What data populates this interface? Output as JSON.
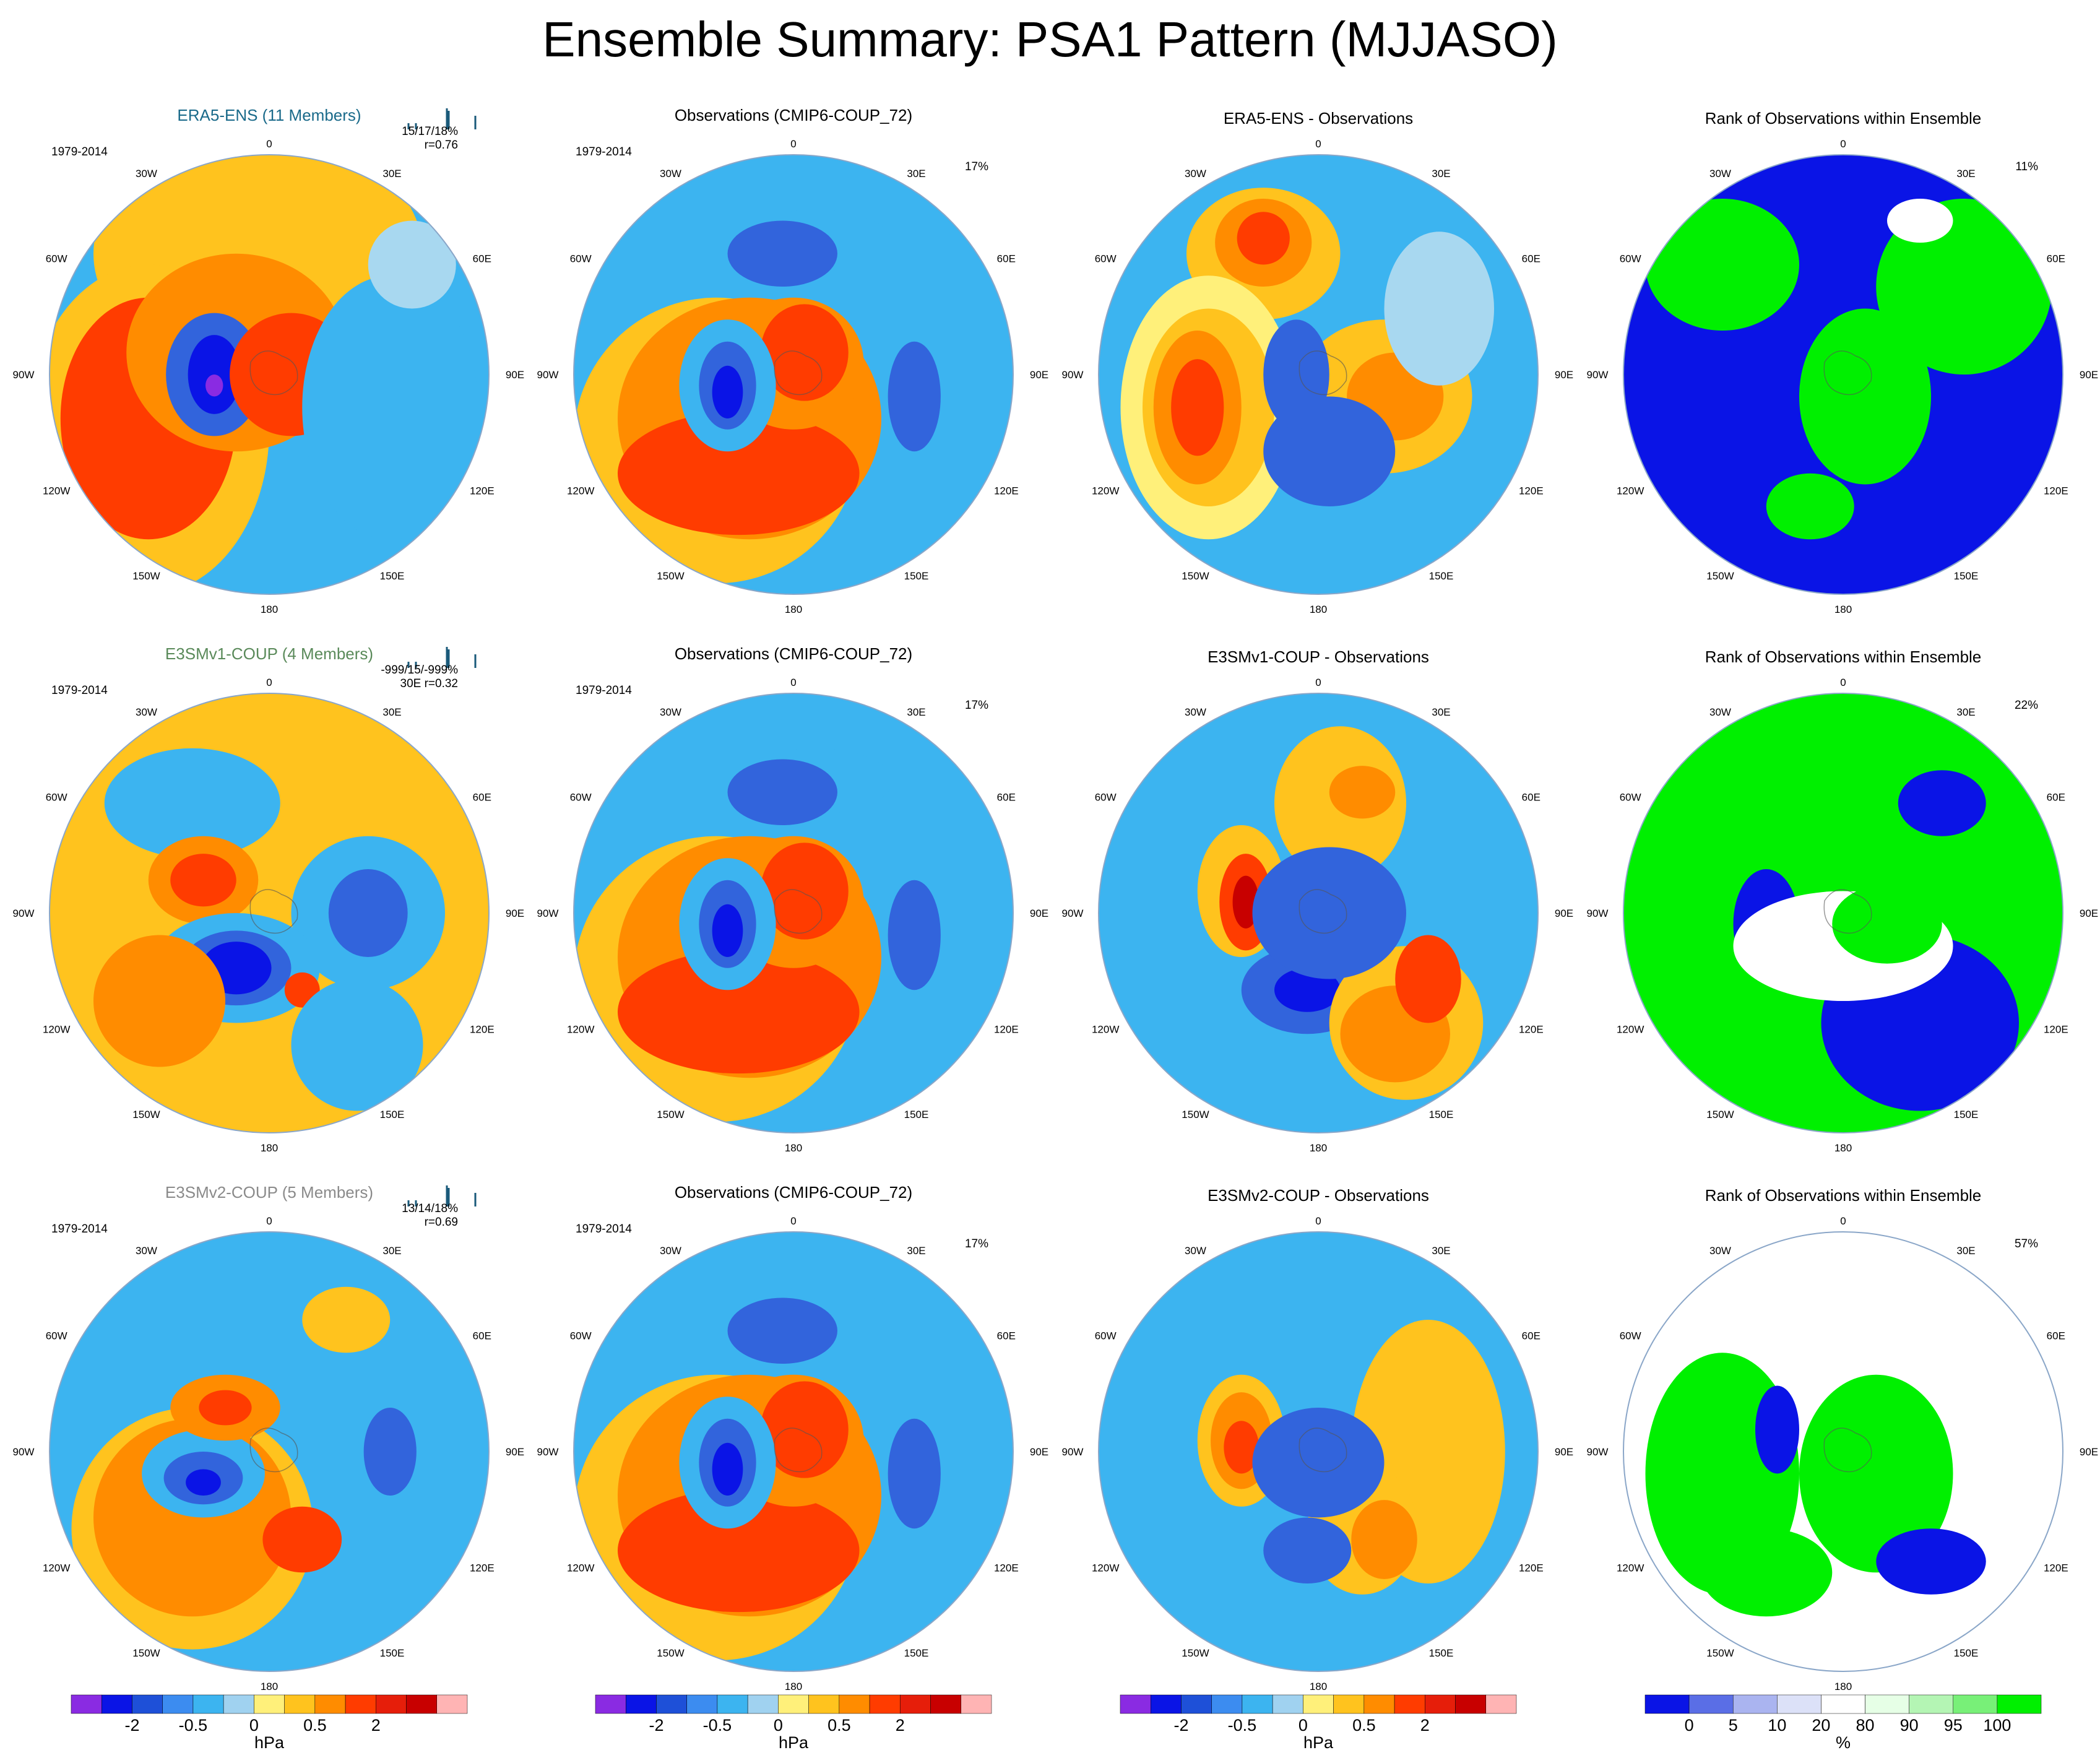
{
  "figure": {
    "title": "Ensemble Summary: PSA1 Pattern (MJJASO)"
  },
  "map_labels": {
    "top": "0",
    "bottom": "180",
    "left_labels": [
      "30W",
      "60W",
      "90W",
      "120W",
      "150W"
    ],
    "right_labels": [
      "30E",
      "60E",
      "90E",
      "120E",
      "150E"
    ]
  },
  "rows": [
    {
      "ensemble": {
        "title": "ERA5-ENS (11 Members)",
        "title_color": "#1a6a8a",
        "period": "1979-2014",
        "stats": "15/17/18%",
        "corr": "r=0.76",
        "percent": "",
        "row_prefix": ""
      },
      "obs": {
        "title": "Observations (CMIP6-COUP_72)",
        "period": "1979-2014",
        "percent": "17%"
      },
      "diff": {
        "title": "ERA5-ENS - Observations"
      },
      "rank": {
        "title": "Rank of Observations within Ensemble",
        "percent": "11%"
      }
    },
    {
      "ensemble": {
        "title": "E3SMv1-COUP (4 Members)",
        "title_color": "#5a8a5a",
        "period": "1979-2014",
        "stats": "-999/15/-999%",
        "corr": "30E  r=0.32",
        "percent": "",
        "row_prefix": ""
      },
      "obs": {
        "title": "Observations (CMIP6-COUP_72)",
        "period": "1979-2014",
        "percent": "17%"
      },
      "diff": {
        "title": "E3SMv1-COUP - Observations"
      },
      "rank": {
        "title": "Rank of Observations within Ensemble",
        "percent": "22%"
      }
    },
    {
      "ensemble": {
        "title": "E3SMv2-COUP (5 Members)",
        "title_color": "#8a8a8a",
        "period": "1979-2014",
        "stats": "13/14/18%",
        "corr": "r=0.69",
        "percent": "",
        "row_prefix": ""
      },
      "obs": {
        "title": "Observations (CMIP6-COUP_72)",
        "period": "1979-2014",
        "percent": "17%"
      },
      "diff": {
        "title": "E3SMv2-COUP - Observations"
      },
      "rank": {
        "title": "Rank of Observations within Ensemble",
        "percent": "57%"
      }
    }
  ],
  "chart_data": {
    "type": "heatmap",
    "title": "Ensemble Summary: PSA1 Pattern (MJJASO)",
    "grid": false,
    "projection": "south polar stereographic",
    "colorbar_hpa": {
      "label": "hPa",
      "tick_labels": [
        "-2",
        "-0.5",
        "0",
        "0.5",
        "2"
      ],
      "colors": [
        "#8a2be2",
        "#0a14e6",
        "#1e50d8",
        "#3c8cf0",
        "#3cb4f0",
        "#a0d2f0",
        "#fff07a",
        "#ffc31e",
        "#ff8c00",
        "#ff3c00",
        "#e61e0a",
        "#c80000",
        "#ffb4b4"
      ]
    },
    "colorbar_rank": {
      "label": "%",
      "tick_labels": [
        "0",
        "5",
        "10",
        "20",
        "80",
        "90",
        "95",
        "100"
      ],
      "colors": [
        "#0a14e6",
        "#5a6ee6",
        "#aab4f0",
        "#dce1f8",
        "#ffffff",
        "#e6ffe6",
        "#b4f5b4",
        "#78f078",
        "#00f000"
      ]
    },
    "palette": {
      "vneg": "#8a2be2",
      "dneg": "#0a14e6",
      "mneg": "#3264dc",
      "lneg": "#3cb4f0",
      "pneg": "#a8d8f0",
      "ppos": "#fff07a",
      "lpos": "#ffc31e",
      "mpos": "#ff8c00",
      "dpos": "#ff3c00",
      "vpos": "#c80000",
      "rank_low": "#0a14e6",
      "rank_high": "#00f000",
      "rank_mid": "#ffffff"
    }
  }
}
